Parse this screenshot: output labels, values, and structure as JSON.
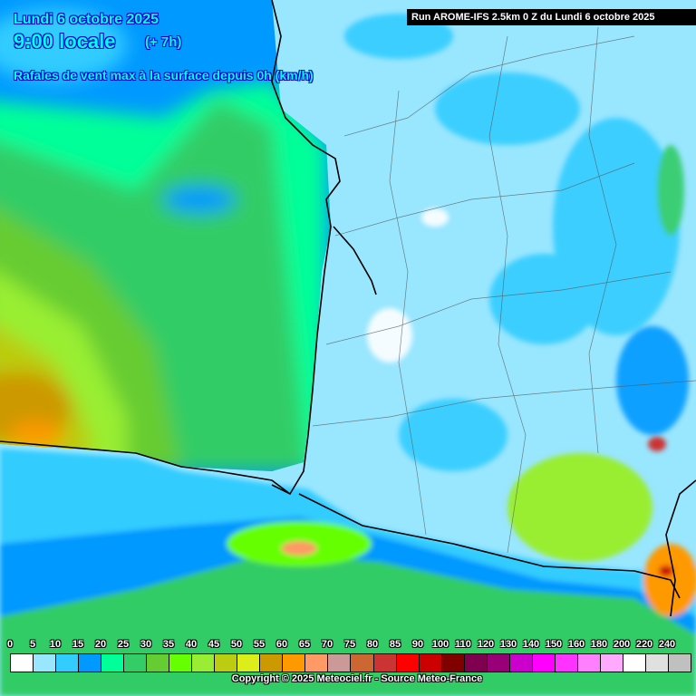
{
  "header": {
    "date": "Lundi 6 octobre 2025",
    "time": "9:00 locale",
    "offset": "(+ 7h)",
    "parameter": "Rafales de vent max à la surface depuis 0h (km/h)",
    "run": "Run AROME-IFS 2.5km 0 Z du Lundi 6 octobre 2025"
  },
  "legend": {
    "labels": [
      "0",
      "5",
      "10",
      "15",
      "20",
      "25",
      "30",
      "35",
      "40",
      "45",
      "50",
      "55",
      "60",
      "65",
      "70",
      "75",
      "80",
      "85",
      "90",
      "100",
      "110",
      "120",
      "130",
      "140",
      "150",
      "160",
      "180",
      "200",
      "220",
      "240"
    ],
    "colors": [
      "#ffffff",
      "#99e6ff",
      "#33ccff",
      "#0099ff",
      "#00ff99",
      "#33cc66",
      "#66cc33",
      "#66ff00",
      "#99ee33",
      "#bbcc11",
      "#dded1a",
      "#cc9900",
      "#ff9900",
      "#ff9966",
      "#cc9999",
      "#cc6633",
      "#cc3333",
      "#ff0000",
      "#cc0000",
      "#800000",
      "#800050",
      "#990077",
      "#cc00cc",
      "#ff00ff",
      "#ff33ff",
      "#ff80ff",
      "#ffaaff",
      "#ffffff",
      "#e0e0e0",
      "#c0c0c0"
    ]
  },
  "copyright": "Copyright © 2025 Meteociel.fr - Source Meteo-France"
}
